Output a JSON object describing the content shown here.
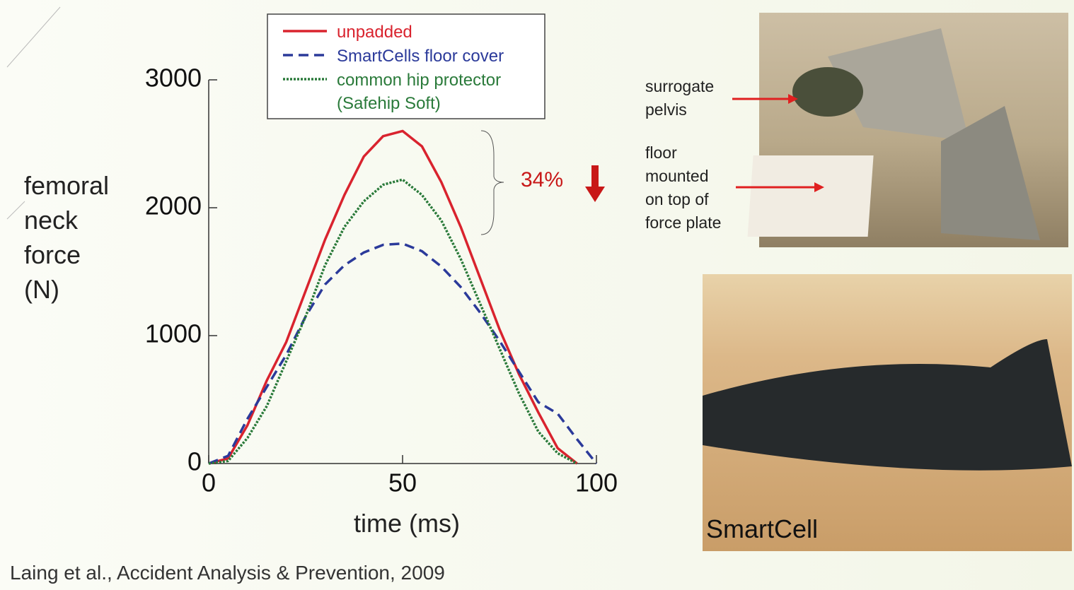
{
  "chart_data": {
    "type": "line",
    "y_label": "femoral\nneck\nforce\n(N)",
    "x_label": "time (ms)",
    "x": [
      0,
      5,
      10,
      15,
      20,
      25,
      30,
      35,
      40,
      45,
      50,
      55,
      60,
      65,
      70,
      75,
      80,
      85,
      90,
      95,
      100
    ],
    "series": [
      {
        "name": "unpadded",
        "color": "#d9232e",
        "dash": "solid",
        "values": [
          0,
          40,
          300,
          650,
          950,
          1350,
          1750,
          2100,
          2400,
          2560,
          2600,
          2480,
          2200,
          1850,
          1450,
          1050,
          700,
          400,
          120,
          0,
          null
        ]
      },
      {
        "name": "SmartCells floor cover",
        "color": "#2b3a9a",
        "dash": "dashed",
        "values": [
          0,
          60,
          350,
          600,
          850,
          1150,
          1400,
          1550,
          1650,
          1710,
          1720,
          1660,
          1540,
          1380,
          1180,
          960,
          720,
          480,
          390,
          190,
          0
        ]
      },
      {
        "name": "common hip protector\n(Safehip Soft)",
        "color": "#2a7a3a",
        "dash": "dotted",
        "values": [
          0,
          20,
          200,
          450,
          800,
          1150,
          1550,
          1850,
          2050,
          2180,
          2220,
          2100,
          1900,
          1600,
          1250,
          900,
          550,
          250,
          80,
          0,
          null
        ]
      }
    ],
    "xlim": [
      0,
      100
    ],
    "xticks": [
      0,
      50,
      100
    ],
    "ylim": [
      0,
      3000
    ],
    "yticks": [
      0,
      1000,
      2000,
      3000
    ],
    "annotation": "34%"
  },
  "photos": {
    "label_pelvis": "surrogate\npelvis",
    "label_floor": "floor\nmounted\non top of\nforce plate",
    "label_smartcell": "SmartCell"
  },
  "citation": "Laing et al., Accident Analysis & Prevention, 2009"
}
